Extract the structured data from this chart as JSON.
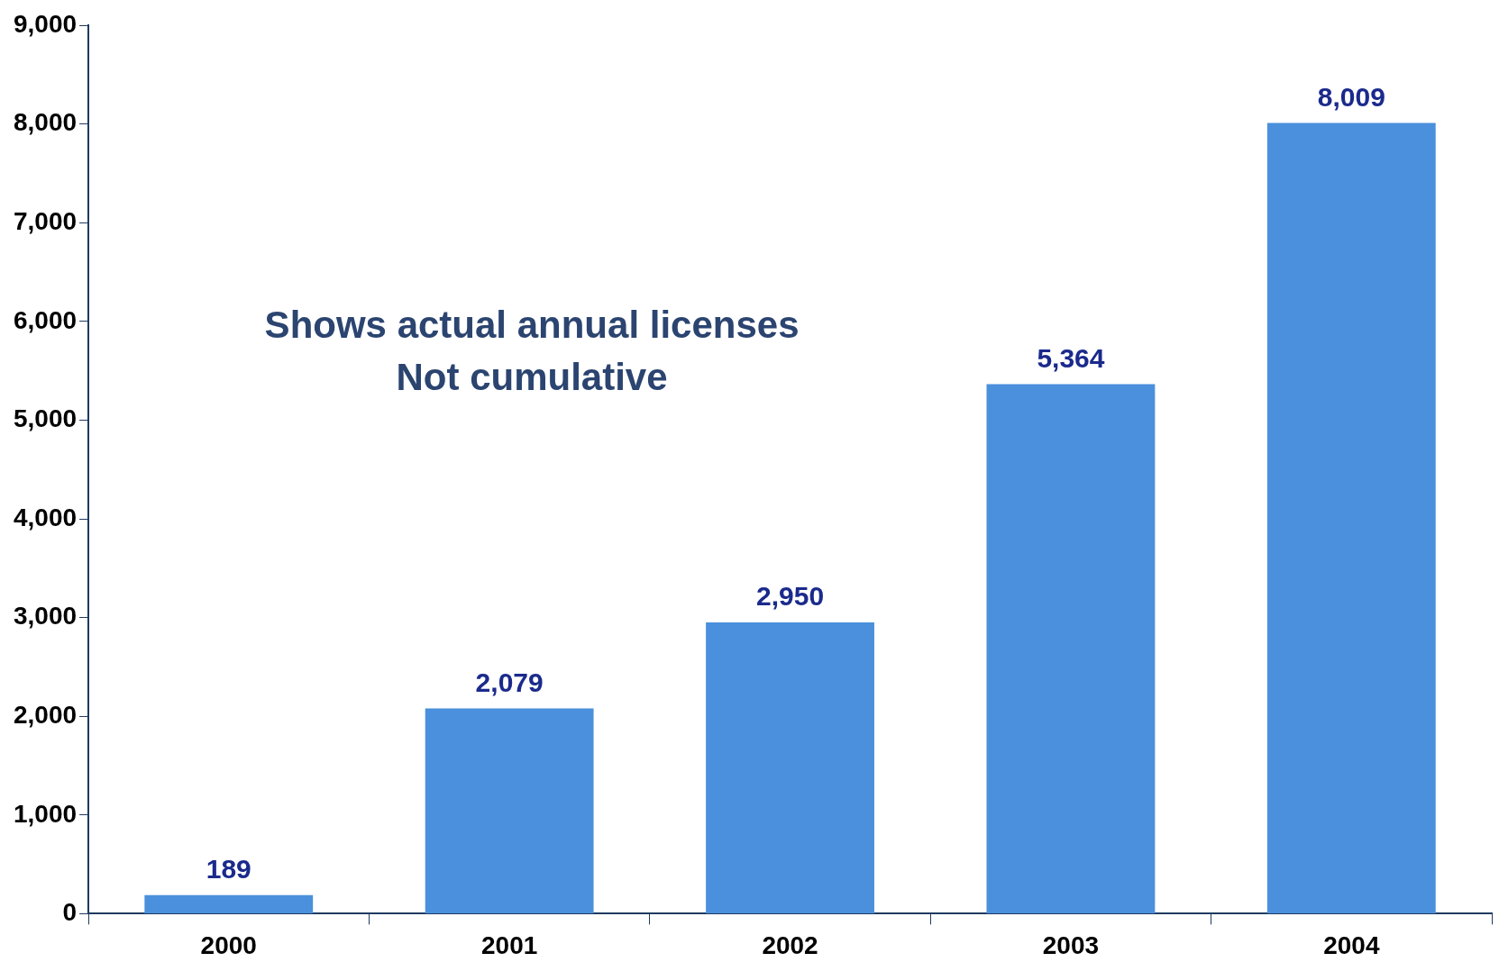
{
  "chart_data": {
    "type": "bar",
    "categories": [
      "2000",
      "2001",
      "2002",
      "2003",
      "2004"
    ],
    "values": [
      189,
      2079,
      2950,
      5364,
      8009
    ],
    "value_labels": [
      "189",
      "2,079",
      "2,950",
      "5,364",
      "8,009"
    ],
    "color": "#4a90dc",
    "ylim": [
      0,
      9000
    ],
    "yticks": [
      {
        "value": 0,
        "label": "0"
      },
      {
        "value": 1000,
        "label": "1,000"
      },
      {
        "value": 2000,
        "label": "2,000"
      },
      {
        "value": 3000,
        "label": "3,000"
      },
      {
        "value": 4000,
        "label": "4,000"
      },
      {
        "value": 5000,
        "label": "5,000"
      },
      {
        "value": 6000,
        "label": "6,000"
      },
      {
        "value": 7000,
        "label": "7,000"
      },
      {
        "value": 8000,
        "label": "8,000"
      },
      {
        "value": 9000,
        "label": "9,000"
      }
    ],
    "grid": false,
    "legend": false,
    "annotations": [
      "Shows actual annual licenses",
      "Not cumulative"
    ]
  }
}
